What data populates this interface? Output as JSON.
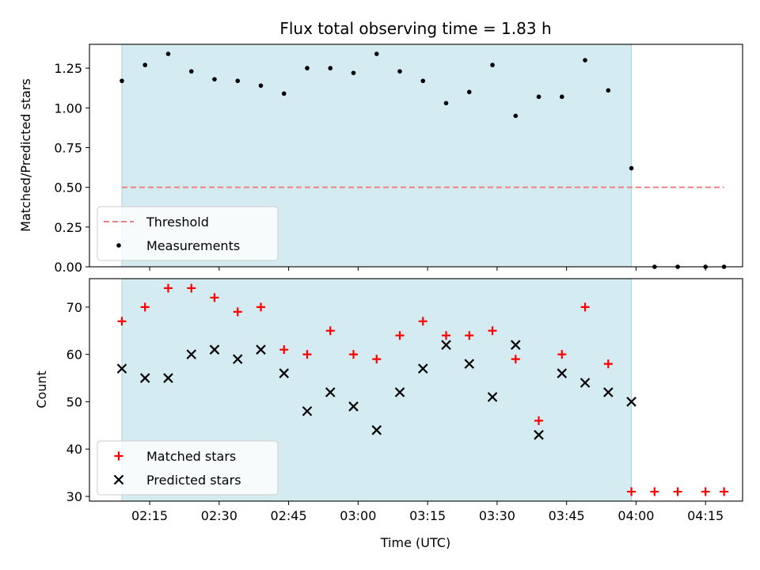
{
  "chart_data": [
    {
      "type": "scatter",
      "title": "Flux total observing time = 1.83 h",
      "xlabel": "",
      "ylabel": "Matched/Predicted stars",
      "ylim": [
        0,
        1.4
      ],
      "yticks": [
        0.0,
        0.25,
        0.5,
        0.75,
        1.0,
        1.25
      ],
      "ytick_labels": [
        "0.00",
        "0.25",
        "0.50",
        "0.75",
        "1.00",
        "1.25"
      ],
      "xlim": [
        "02:02",
        "04:23"
      ],
      "xticks": [
        "02:15",
        "02:30",
        "02:45",
        "03:00",
        "03:15",
        "03:30",
        "03:45",
        "04:00",
        "04:15"
      ],
      "observing_window": [
        "02:09",
        "03:59"
      ],
      "threshold": {
        "name": "Threshold",
        "value": 0.5,
        "x": [
          "02:09",
          "04:19"
        ],
        "color": "#f08080"
      },
      "series": [
        {
          "name": "Measurements",
          "color": "#000000",
          "x": [
            "02:09",
            "02:14",
            "02:19",
            "02:24",
            "02:29",
            "02:34",
            "02:39",
            "02:44",
            "02:49",
            "02:54",
            "02:59",
            "03:04",
            "03:09",
            "03:14",
            "03:19",
            "03:24",
            "03:29",
            "03:34",
            "03:39",
            "03:44",
            "03:49",
            "03:54",
            "03:59",
            "04:04",
            "04:09",
            "04:15",
            "04:19"
          ],
          "values": [
            1.17,
            1.27,
            1.34,
            1.23,
            1.18,
            1.17,
            1.14,
            1.09,
            1.25,
            1.25,
            1.22,
            1.34,
            1.23,
            1.17,
            1.03,
            1.1,
            1.27,
            0.95,
            1.07,
            1.07,
            1.3,
            1.11,
            0.62,
            0.0,
            0.0,
            0.0,
            0.0
          ]
        }
      ],
      "legend": "lower-left"
    },
    {
      "type": "scatter",
      "title": "",
      "xlabel": "Time (UTC)",
      "ylabel": "Count",
      "ylim": [
        29,
        76
      ],
      "yticks": [
        30,
        40,
        50,
        60,
        70
      ],
      "ytick_labels": [
        "30",
        "40",
        "50",
        "60",
        "70"
      ],
      "xlim": [
        "02:02",
        "04:23"
      ],
      "xticks": [
        "02:15",
        "02:30",
        "02:45",
        "03:00",
        "03:15",
        "03:30",
        "03:45",
        "04:00",
        "04:15"
      ],
      "xtick_labels": [
        "02:15",
        "02:30",
        "02:45",
        "03:00",
        "03:15",
        "03:30",
        "03:45",
        "04:00",
        "04:15"
      ],
      "observing_window": [
        "02:09",
        "03:59"
      ],
      "series": [
        {
          "name": "Matched stars",
          "marker": "plus",
          "color": "#ff0000",
          "x": [
            "02:09",
            "02:14",
            "02:19",
            "02:24",
            "02:29",
            "02:34",
            "02:39",
            "02:44",
            "02:49",
            "02:54",
            "02:59",
            "03:04",
            "03:09",
            "03:14",
            "03:19",
            "03:24",
            "03:29",
            "03:34",
            "03:39",
            "03:44",
            "03:49",
            "03:54",
            "03:59",
            "04:04",
            "04:09",
            "04:15",
            "04:19"
          ],
          "values": [
            67,
            70,
            74,
            74,
            72,
            69,
            70,
            61,
            60,
            65,
            60,
            59,
            64,
            67,
            64,
            64,
            65,
            59,
            46,
            60,
            70,
            58,
            31,
            31,
            31,
            31,
            31
          ]
        },
        {
          "name": "Predicted stars",
          "marker": "x",
          "color": "#000000",
          "x": [
            "02:09",
            "02:14",
            "02:19",
            "02:24",
            "02:29",
            "02:34",
            "02:39",
            "02:44",
            "02:49",
            "02:54",
            "02:59",
            "03:04",
            "03:09",
            "03:14",
            "03:19",
            "03:24",
            "03:29",
            "03:34",
            "03:39",
            "03:44",
            "03:49",
            "03:54",
            "03:59"
          ],
          "values": [
            57,
            55,
            55,
            60,
            61,
            59,
            61,
            56,
            48,
            52,
            49,
            44,
            52,
            57,
            62,
            58,
            51,
            62,
            43,
            56,
            54,
            52,
            50
          ]
        }
      ],
      "legend": "lower-left"
    }
  ],
  "colors": {
    "window": "#d4ebf1",
    "window_edge": "#a8d3de"
  }
}
